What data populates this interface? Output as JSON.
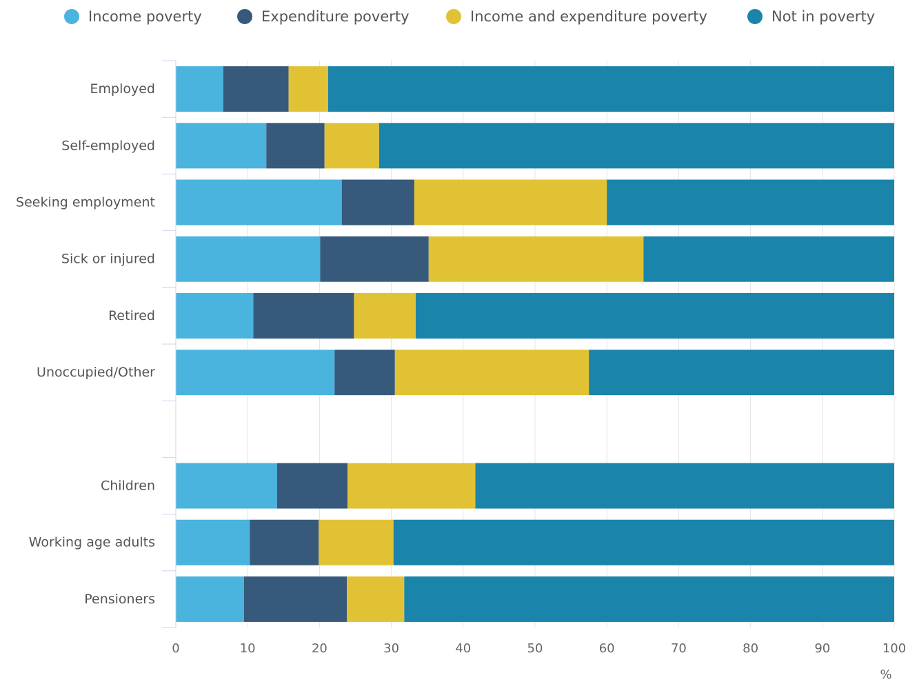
{
  "chart_data": {
    "type": "bar",
    "orientation": "horizontal",
    "stacked": true,
    "categories": [
      "Employed",
      "Self-employed",
      "Seeking employment",
      "Sick or injured",
      "Retired",
      "Unoccupied/Other",
      "",
      "Children",
      "Working age adults",
      "Pensioners"
    ],
    "series": [
      {
        "name": "Income poverty",
        "color": "#4ab3de",
        "values": [
          6.6,
          12.6,
          23.1,
          20.1,
          10.8,
          22.1,
          null,
          14.1,
          10.3,
          9.5
        ]
      },
      {
        "name": "Expenditure poverty",
        "color": "#375a7c",
        "values": [
          9.1,
          8.1,
          10.1,
          15.1,
          14.0,
          8.4,
          null,
          9.8,
          9.6,
          14.3
        ]
      },
      {
        "name": "Income and expenditure poverty",
        "color": "#e2c235",
        "values": [
          5.5,
          7.6,
          26.8,
          29.9,
          8.6,
          27.0,
          null,
          17.8,
          10.4,
          8.0
        ]
      },
      {
        "name": "Not in poverty",
        "color": "#1a84ab",
        "values": [
          78.8,
          71.7,
          40.0,
          34.9,
          66.6,
          42.5,
          null,
          58.3,
          69.7,
          68.2
        ]
      }
    ],
    "xlim": [
      0,
      100
    ],
    "xticks": [
      0,
      10,
      20,
      30,
      40,
      50,
      60,
      70,
      80,
      90,
      100
    ],
    "xlabel": "%",
    "ylabel": "",
    "grid": true,
    "legend_position": "top"
  }
}
